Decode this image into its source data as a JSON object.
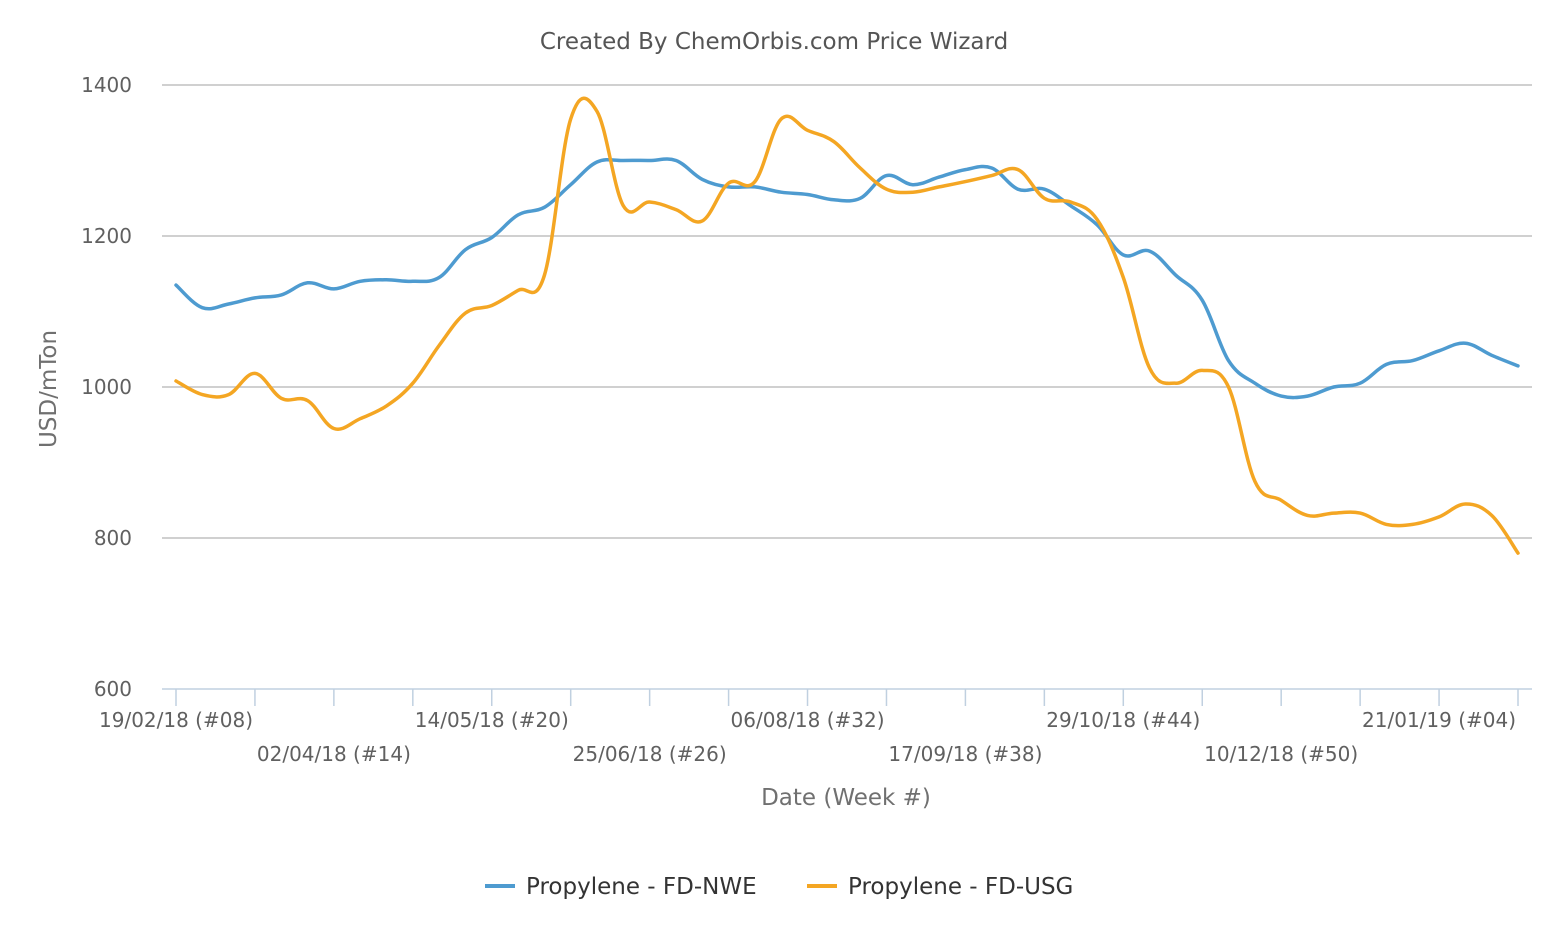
{
  "chart_data": {
    "type": "line",
    "title": "Created By ChemOrbis.com Price Wizard",
    "xlabel": "Date (Week #)",
    "ylabel": "USD/mTon",
    "ylim": [
      600,
      1400
    ],
    "yticks": [
      600,
      800,
      1000,
      1200,
      1400
    ],
    "grid": true,
    "legend_position": "bottom",
    "x_tick_labels": [
      "19/02/18 (#08)",
      "02/04/18 (#14)",
      "14/05/18 (#20)",
      "25/06/18 (#26)",
      "06/08/18 (#32)",
      "17/09/18 (#38)",
      "29/10/18 (#44)",
      "10/12/18 (#50)",
      "21/01/19 (#04)"
    ],
    "x_tick_weeks": [
      0,
      6,
      12,
      18,
      24,
      30,
      36,
      42,
      48
    ],
    "x_range_weeks": [
      0,
      51
    ],
    "x": [
      "19/02/18",
      "26/02/18",
      "05/03/18",
      "12/03/18",
      "19/03/18",
      "26/03/18",
      "02/04/18",
      "09/04/18",
      "16/04/18",
      "23/04/18",
      "30/04/18",
      "07/05/18",
      "14/05/18",
      "21/05/18",
      "28/05/18",
      "04/06/18",
      "11/06/18",
      "18/06/18",
      "25/06/18",
      "02/07/18",
      "09/07/18",
      "16/07/18",
      "23/07/18",
      "30/07/18",
      "06/08/18",
      "13/08/18",
      "20/08/18",
      "27/08/18",
      "03/09/18",
      "10/09/18",
      "17/09/18",
      "24/09/18",
      "01/10/18",
      "08/10/18",
      "15/10/18",
      "22/10/18",
      "29/10/18",
      "05/11/18",
      "12/11/18",
      "19/11/18",
      "26/11/18",
      "03/12/18",
      "10/12/18",
      "17/12/18",
      "24/12/18",
      "31/12/18",
      "07/01/19",
      "14/01/19",
      "21/01/19",
      "28/01/19",
      "04/02/19",
      "11/02/19"
    ],
    "series": [
      {
        "name": "Propylene - FD-NWE",
        "color": "#4e9bd0",
        "values": [
          1135,
          1105,
          1110,
          1118,
          1122,
          1138,
          1130,
          1140,
          1142,
          1140,
          1145,
          1182,
          1198,
          1228,
          1238,
          1268,
          1298,
          1300,
          1300,
          1300,
          1275,
          1265,
          1265,
          1258,
          1255,
          1248,
          1250,
          1280,
          1268,
          1278,
          1288,
          1290,
          1262,
          1262,
          1240,
          1215,
          1175,
          1180,
          1148,
          1115,
          1035,
          1005,
          988,
          988,
          1000,
          1005,
          1030,
          1035,
          1048,
          1058,
          1042,
          1028
        ]
      },
      {
        "name": "Propylene - FD-USG",
        "color": "#f4a623",
        "values": [
          1008,
          990,
          990,
          1018,
          985,
          982,
          945,
          958,
          975,
          1005,
          1055,
          1098,
          1108,
          1128,
          1148,
          1355,
          1365,
          1240,
          1245,
          1235,
          1220,
          1270,
          1272,
          1355,
          1340,
          1325,
          1290,
          1262,
          1258,
          1265,
          1272,
          1280,
          1288,
          1250,
          1245,
          1222,
          1145,
          1025,
          1005,
          1022,
          1000,
          875,
          850,
          830,
          833,
          833,
          818,
          818,
          828,
          845,
          830,
          780
        ]
      }
    ]
  }
}
